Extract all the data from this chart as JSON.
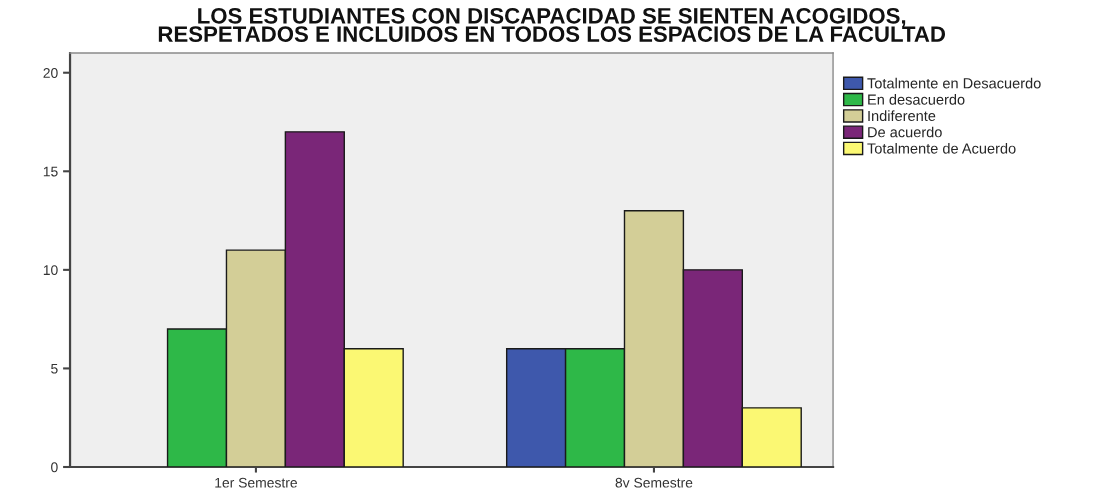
{
  "chart_data": {
    "type": "bar",
    "title": "LOS ESTUDIANTES CON DISCAPACIDAD SE SIENTEN ACOGIDOS,\nRESPETADOS E INCLUIDOS EN TODOS LOS ESPACIOS DE LA FACULTAD",
    "categories": [
      "1er Semestre",
      "8v Semestre"
    ],
    "series": [
      {
        "name": "Totalmente en Desacuerdo",
        "color": "#3e58ac",
        "values": [
          null,
          6
        ]
      },
      {
        "name": "En desacuerdo",
        "color": "#2eb848",
        "values": [
          7,
          6
        ]
      },
      {
        "name": "Indiferente",
        "color": "#d3ce97",
        "values": [
          11,
          13
        ]
      },
      {
        "name": "De acuerdo",
        "color": "#7a2678",
        "values": [
          17,
          10
        ]
      },
      {
        "name": "Totalmente de Acuerdo",
        "color": "#fbf873",
        "values": [
          6,
          3
        ]
      }
    ],
    "ylim": [
      0,
      21
    ],
    "yticks": [
      0,
      5,
      10,
      15,
      20
    ],
    "grid": false,
    "legend": "right"
  }
}
